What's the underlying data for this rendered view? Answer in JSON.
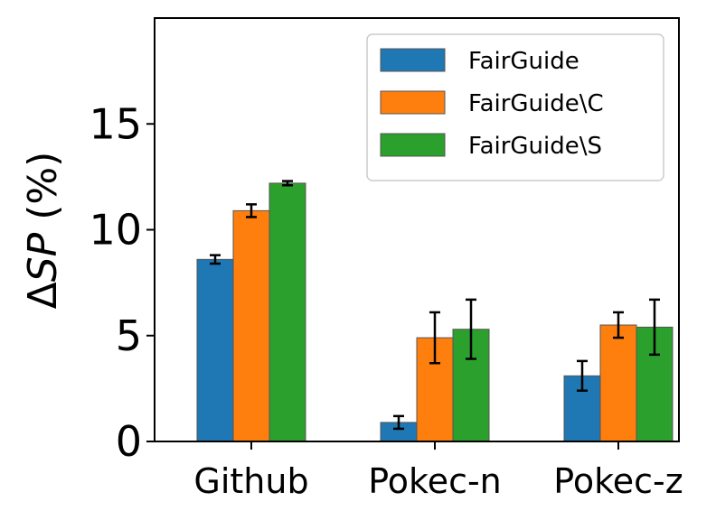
{
  "chart_data": {
    "type": "bar",
    "categories": [
      "Github",
      "Pokec-n",
      "Pokec-z"
    ],
    "series": [
      {
        "name": "FairGuide",
        "color": "#1f77b4",
        "values": [
          8.6,
          0.9,
          3.1
        ],
        "errors": [
          0.2,
          0.3,
          0.7
        ]
      },
      {
        "name": "FairGuide\\C",
        "color": "#ff7f0e",
        "values": [
          10.9,
          4.9,
          5.5
        ],
        "errors": [
          0.3,
          1.2,
          0.6
        ]
      },
      {
        "name": "FairGuide\\S",
        "color": "#2ca02c",
        "values": [
          12.2,
          5.3,
          5.4
        ],
        "errors": [
          0.1,
          1.4,
          1.3
        ]
      }
    ],
    "ylabel_prefix": "Δ",
    "ylabel_italic": "SP",
    "ylabel_suffix": " (%)",
    "xlabel": "",
    "ylim": [
      0,
      20
    ],
    "yticks": [
      0,
      5,
      10,
      15
    ],
    "legend_position": "upper-right",
    "grid": false
  }
}
